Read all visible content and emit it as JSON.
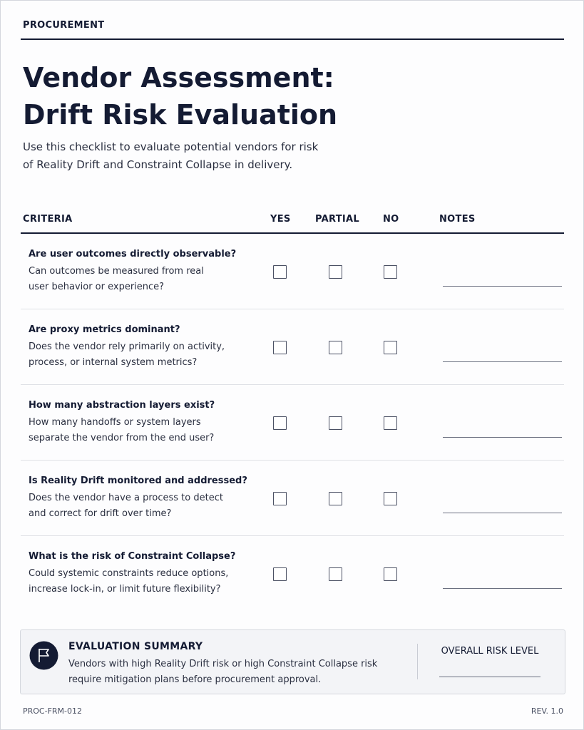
{
  "header": {
    "section": "PROCUREMENT",
    "title": [
      "Vendor Assessment:",
      "Drift Risk Evaluation"
    ],
    "description": [
      "Use this checklist to evaluate potential vendors for risk",
      "of Reality Drift and Constraint Collapse in delivery."
    ]
  },
  "table": {
    "columns": [
      "CRITERIA",
      "YES",
      "PARTIAL",
      "NO",
      "NOTES"
    ],
    "rows": [
      {
        "question": "Are user outcomes directly observable?",
        "description": [
          "Can outcomes be measured from real",
          "user behavior or experience?"
        ]
      },
      {
        "question": "Are proxy metrics dominant?",
        "description": [
          "Does the vendor rely primarily on activity,",
          "process, or internal system metrics?"
        ]
      },
      {
        "question": "How many abstraction layers exist?",
        "description": [
          "How many handoffs or system layers",
          "separate the vendor from the end user?"
        ]
      },
      {
        "question": "Is Reality Drift monitored and addressed?",
        "description": [
          "Does the vendor have a process to detect",
          "and correct for drift over time?"
        ]
      },
      {
        "question": "What is the risk of Constraint Collapse?",
        "description": [
          "Could systemic constraints reduce options,",
          "increase lock-in, or limit future flexibility?"
        ]
      }
    ]
  },
  "summary": {
    "title": "EVALUATION SUMMARY",
    "text": [
      "Vendors with high Reality Drift risk or high Constraint Collapse risk",
      "require mitigation plans before procurement approval."
    ],
    "risk_label": "OVERALL RISK LEVEL"
  },
  "footer": {
    "code": "PROC-FRM-012",
    "revision": "REV. 1.0"
  }
}
